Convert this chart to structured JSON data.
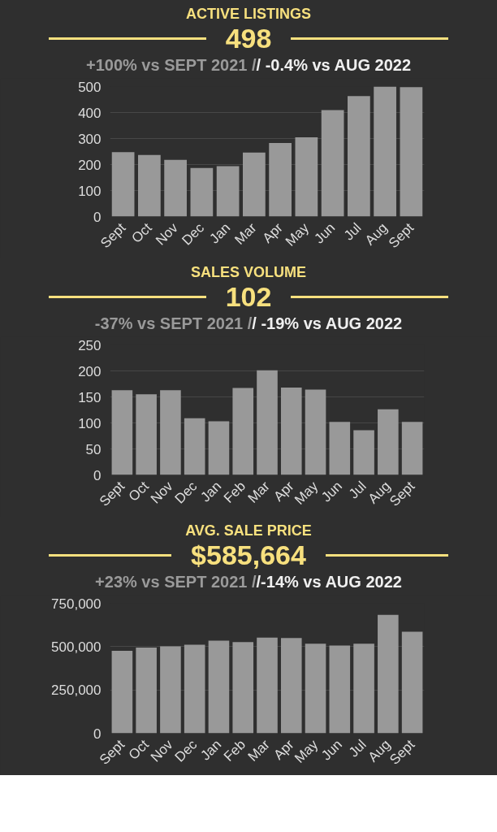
{
  "chart_data": [
    {
      "type": "bar",
      "title": "ACTIVE LISTINGS",
      "subtitle": "498",
      "annotations": [
        "+100% vs SEPT 2021 /",
        "/ -0.4% vs AUG 2022"
      ],
      "categories": [
        "Sept",
        "Oct",
        "Nov",
        "Dec",
        "Jan",
        "Mar",
        "Apr",
        "May",
        "Jun",
        "Jul",
        "Aug",
        "Sept"
      ],
      "values": [
        248,
        237,
        218,
        187,
        194,
        246,
        283,
        305,
        409,
        463,
        500,
        498
      ],
      "color": "#999999",
      "ylim": [
        0,
        500
      ],
      "yticks": [
        0,
        100,
        200,
        300,
        400,
        500
      ],
      "grid": "y"
    },
    {
      "type": "bar",
      "title": "SALES VOLUME",
      "subtitle": "102",
      "annotations": [
        "-37% vs SEPT 2021 /",
        "/ -19% vs AUG 2022"
      ],
      "categories": [
        "Sept",
        "Oct",
        "Nov",
        "Dec",
        "Jan",
        "Feb",
        "Mar",
        "Apr",
        "May",
        "Jun",
        "Jul",
        "Aug",
        "Sept"
      ],
      "values": [
        163,
        155,
        163,
        109,
        103,
        167,
        201,
        168,
        164,
        102,
        86,
        126,
        102
      ],
      "color": "#999999",
      "ylim": [
        0,
        250
      ],
      "yticks": [
        0,
        50,
        100,
        150,
        200,
        250
      ],
      "grid": "y"
    },
    {
      "type": "bar",
      "title": "AVG. SALE PRICE",
      "subtitle": "$585,664",
      "annotations": [
        "+23% vs SEPT 2021 /",
        "/-14% vs AUG 2022"
      ],
      "categories": [
        "Sept",
        "Oct",
        "Nov",
        "Dec",
        "Jan",
        "Feb",
        "Mar",
        "Apr",
        "May",
        "Jun",
        "Jul",
        "Aug",
        "Sept"
      ],
      "values": [
        476000,
        494000,
        502000,
        511000,
        534000,
        526000,
        552000,
        550000,
        517000,
        506000,
        517000,
        683000,
        586000
      ],
      "color": "#999999",
      "ylim": [
        0,
        750000
      ],
      "yticks": [
        0,
        {
          "value": 250000,
          "label": "250,000"
        },
        {
          "value": 500000,
          "label": "500,000"
        },
        {
          "value": 750000,
          "label": "750,000"
        }
      ],
      "grid": "y"
    }
  ]
}
